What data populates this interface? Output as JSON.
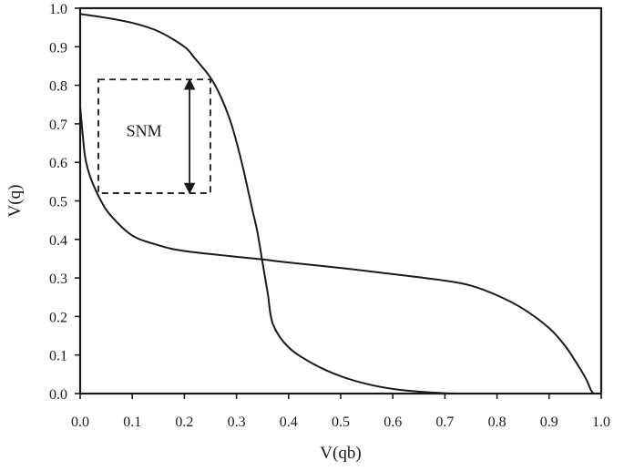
{
  "chart_data": {
    "type": "line",
    "title": "",
    "xlabel": "V(qb)",
    "ylabel": "V(q)",
    "xlim": [
      0.0,
      1.0
    ],
    "ylim": [
      0.0,
      1.0
    ],
    "x_ticks": [
      "0.0",
      "0.1",
      "0.2",
      "0.3",
      "0.4",
      "0.5",
      "0.6",
      "0.7",
      "0.8",
      "0.9",
      "1.0"
    ],
    "y_ticks": [
      "0.0",
      "0.1",
      "0.2",
      "0.3",
      "0.4",
      "0.5",
      "0.6",
      "0.7",
      "0.8",
      "0.9",
      "1.0"
    ],
    "grid": false,
    "legend": "none",
    "series": [
      {
        "points": [
          [
            0.0,
            0.985
          ],
          [
            0.05,
            0.975
          ],
          [
            0.1,
            0.962
          ],
          [
            0.15,
            0.94
          ],
          [
            0.2,
            0.9
          ],
          [
            0.22,
            0.87
          ],
          [
            0.25,
            0.82
          ],
          [
            0.27,
            0.77
          ],
          [
            0.29,
            0.7
          ],
          [
            0.31,
            0.6
          ],
          [
            0.33,
            0.48
          ],
          [
            0.34,
            0.42
          ],
          [
            0.35,
            0.34
          ],
          [
            0.36,
            0.26
          ],
          [
            0.37,
            0.18
          ],
          [
            0.4,
            0.12
          ],
          [
            0.45,
            0.075
          ],
          [
            0.5,
            0.045
          ],
          [
            0.55,
            0.025
          ],
          [
            0.6,
            0.012
          ],
          [
            0.65,
            0.005
          ],
          [
            0.7,
            0.001
          ],
          [
            0.73,
            0.0
          ]
        ]
      },
      {
        "points": [
          [
            0.0,
            0.745
          ],
          [
            0.005,
            0.67
          ],
          [
            0.01,
            0.61
          ],
          [
            0.02,
            0.56
          ],
          [
            0.04,
            0.5
          ],
          [
            0.06,
            0.46
          ],
          [
            0.1,
            0.41
          ],
          [
            0.15,
            0.385
          ],
          [
            0.2,
            0.37
          ],
          [
            0.3,
            0.355
          ],
          [
            0.35,
            0.348
          ],
          [
            0.4,
            0.34
          ],
          [
            0.5,
            0.326
          ],
          [
            0.6,
            0.31
          ],
          [
            0.7,
            0.293
          ],
          [
            0.75,
            0.28
          ],
          [
            0.8,
            0.255
          ],
          [
            0.85,
            0.22
          ],
          [
            0.9,
            0.17
          ],
          [
            0.93,
            0.125
          ],
          [
            0.95,
            0.085
          ],
          [
            0.97,
            0.04
          ],
          [
            0.98,
            0.01
          ],
          [
            0.985,
            0.0
          ]
        ]
      }
    ],
    "annotations": {
      "snm_label": "SNM",
      "snm_box": {
        "x0": 0.035,
        "x1": 0.25,
        "y0": 0.52,
        "y1": 0.815
      },
      "snm_arrow": {
        "x": 0.21,
        "y0": 0.52,
        "y1": 0.815
      }
    },
    "colors": {
      "line": "#1a1a1a",
      "axis": "#1a1a1a",
      "background": "#ffffff"
    }
  }
}
